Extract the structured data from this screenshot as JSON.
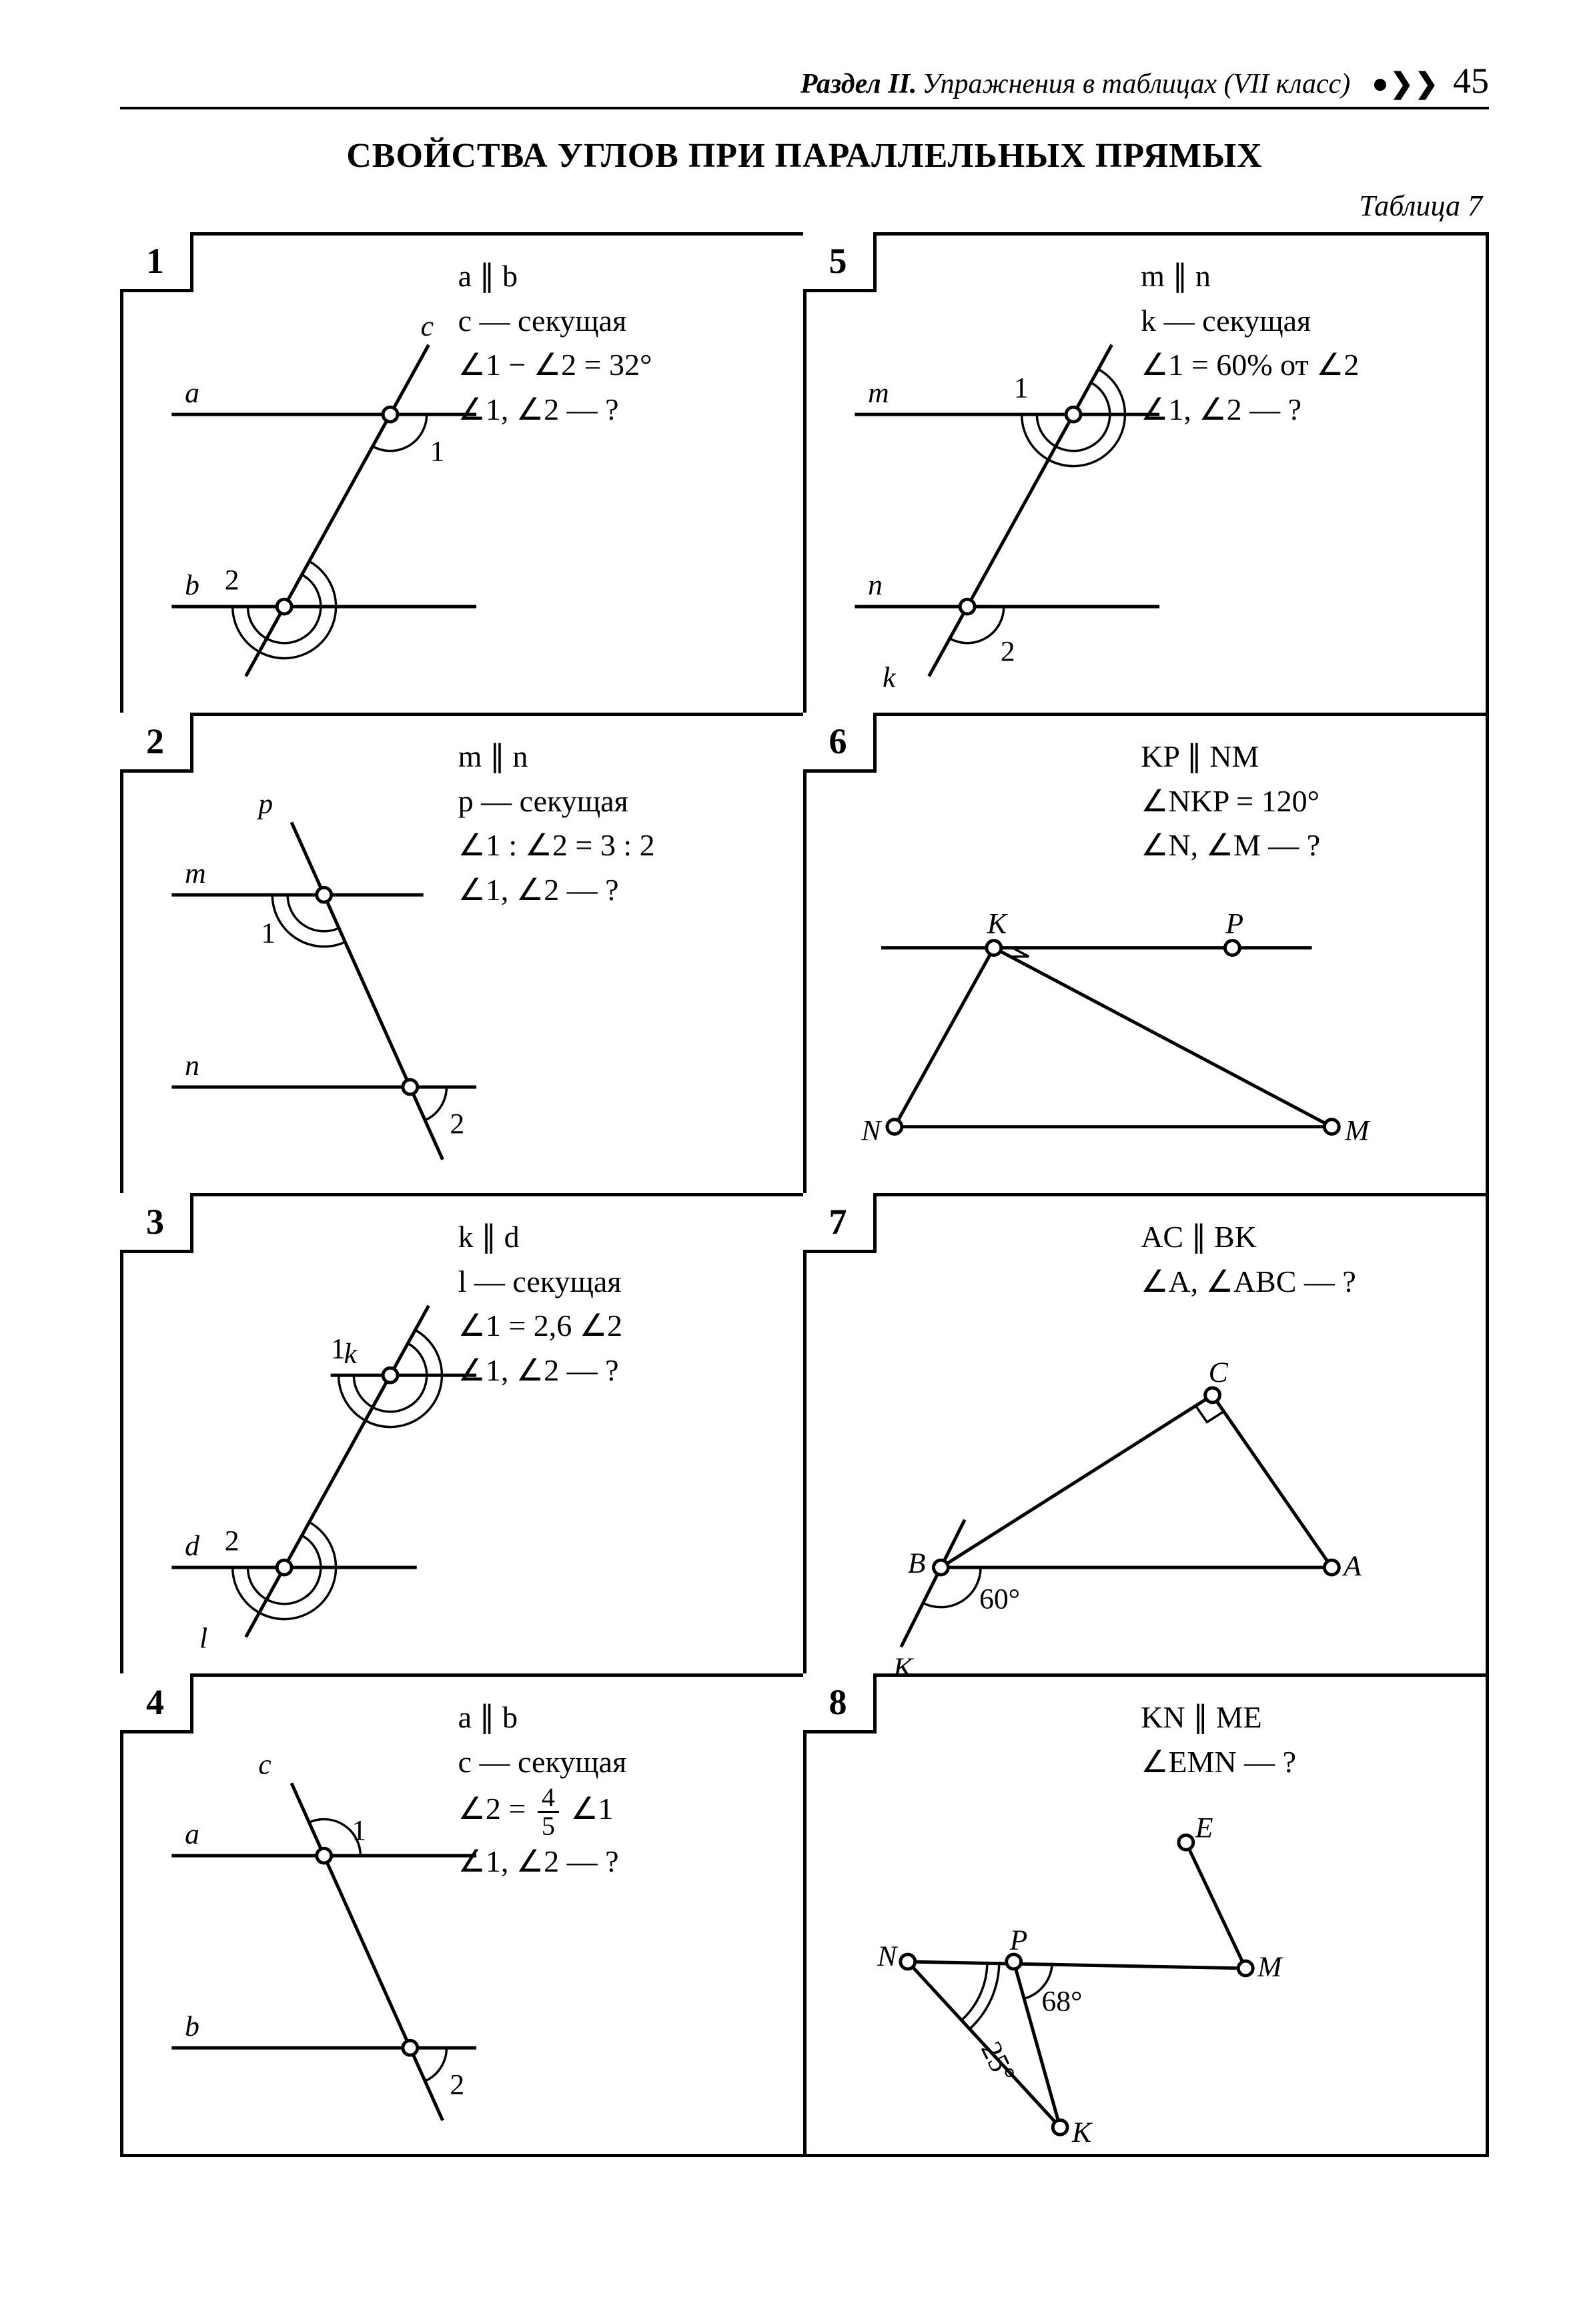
{
  "page": {
    "section": "Раздел II.",
    "subtitle": "Упражнения в таблицах (VII класс)",
    "dots": "●❯❯",
    "number": "45"
  },
  "title": "СВОЙСТВА УГЛОВ ПРИ ПАРАЛЛЕЛЬНЫХ ПРЯМЫХ",
  "table_label": "Таблица 7",
  "problems": [
    {
      "n": "1",
      "lines": [
        "a ∥ b",
        "c — секущая",
        "∠1 − ∠2 = 32°",
        "∠1, ∠2 — ?"
      ],
      "fig": {
        "type": "two-parallels",
        "label_a": "a",
        "label_b": "b",
        "trans_label": "c",
        "ang_top": "1",
        "ang_top_pos": "below-right",
        "ang_bot": "2",
        "ang_bot_pos": "above-left",
        "trans_slope": "right"
      }
    },
    {
      "n": "2",
      "lines": [
        "m ∥ n",
        "p — секущая",
        "∠1 : ∠2 = 3 : 2",
        "∠1, ∠2 — ?"
      ],
      "fig": {
        "type": "two-parallels",
        "label_a": "m",
        "label_b": "n",
        "trans_label": "p",
        "ang_top": "1",
        "ang_top_pos": "below-left",
        "ang_bot": "2",
        "ang_bot_pos": "below-right",
        "trans_slope": "left",
        "short_a": true
      }
    },
    {
      "n": "3",
      "lines": [
        "k ∥ d",
        "l — секущая",
        "∠1 = 2,6 ∠2",
        "∠1, ∠2 — ?"
      ],
      "fig": {
        "type": "two-parallels",
        "label_a": "k",
        "label_b": "d",
        "trans_label": "l",
        "ang_top": "1",
        "ang_top_pos": "above-left",
        "ang_bot": "2",
        "ang_bot_pos": "above-left",
        "trans_slope": "right",
        "short_both": true,
        "trans_label_bottom": true
      }
    },
    {
      "n": "4",
      "lines": [
        "a ∥ b",
        "c — секущая",
        "__FRAC__",
        "∠1, ∠2 — ?"
      ],
      "frac_line": {
        "before": "∠2 = ",
        "num": "4",
        "den": "5",
        "after": " ∠1"
      },
      "fig": {
        "type": "two-parallels",
        "label_a": "a",
        "label_b": "b",
        "trans_label": "c",
        "ang_top": "1",
        "ang_top_pos": "above-right",
        "ang_bot": "2",
        "ang_bot_pos": "below-right",
        "trans_slope": "left"
      }
    },
    {
      "n": "5",
      "lines": [
        "m ∥ n",
        "k — секущая",
        "∠1 = 60% от ∠2",
        "∠1, ∠2 — ?"
      ],
      "fig": {
        "type": "two-parallels",
        "label_a": "m",
        "label_b": "n",
        "trans_label": "k",
        "ang_top": "1",
        "ang_top_pos": "above-left",
        "ang_bot": "2",
        "ang_bot_pos": "below-right-out",
        "trans_slope": "right",
        "trans_label_bottom": true
      }
    },
    {
      "n": "6",
      "lines": [
        "KP ∥ NM",
        "∠NKP = 120°",
        "∠N, ∠M — ?"
      ],
      "fig": {
        "type": "p6"
      }
    },
    {
      "n": "7",
      "lines": [
        "AC ∥ BK",
        "∠A, ∠ABC — ?"
      ],
      "fig": {
        "type": "p7"
      }
    },
    {
      "n": "8",
      "lines": [
        "KN ∥ ME",
        "∠EMN — ?"
      ],
      "fig": {
        "type": "p8"
      }
    }
  ],
  "style": {
    "stroke": "#000000",
    "bg": "#ffffff",
    "point_fill": "#ffffff",
    "font": "Times New Roman"
  }
}
